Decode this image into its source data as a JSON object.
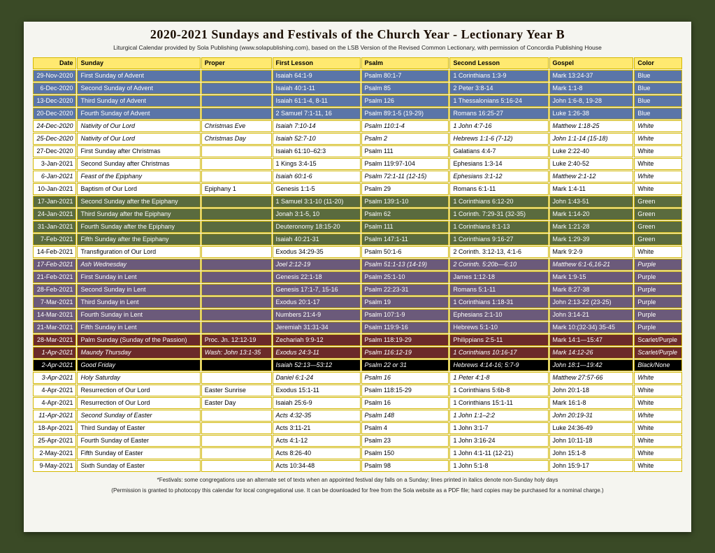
{
  "title": "2020-2021 Sundays and Festivals of the Church Year - Lectionary Year B",
  "subtitle": "Liturgical Calendar provided by Sola Publishing (www.solapublishing.com), based on the LSB Version of the Revised Common Lectionary, with permission of Concordia Publishing House",
  "footnote1": "*Festivals: some congregations use an alternate set of texts when an appointed festival day falls on a Sunday; lines printed in italics denote non-Sunday holy days",
  "footnote2": "(Permission is granted to photocopy this calendar for local congregational use. It can be downloaded for free from the Sola website as a PDF file; hard copies may be purchased for a nominal charge.)",
  "headers": [
    "Date",
    "Sunday",
    "Proper",
    "First Lesson",
    "Psalm",
    "Second Lesson",
    "Gospel",
    "Color"
  ],
  "colorStyles": {
    "Blue": {
      "bg": "#5a75a8",
      "fg": "#ffffff"
    },
    "White": {
      "bg": "#ffffff",
      "fg": "#000000"
    },
    "Green": {
      "bg": "#5a6b3e",
      "fg": "#ffffff"
    },
    "Purple": {
      "bg": "#6b5a7a",
      "fg": "#ffffff"
    },
    "Scarlet/Purple": {
      "bg": "#6b2a2a",
      "fg": "#ffffff"
    },
    "Black/None": {
      "bg": "#000000",
      "fg": "#ffffff"
    }
  },
  "rows": [
    {
      "date": "29-Nov-2020",
      "sunday": "First Sunday of Advent",
      "proper": "",
      "first": "Isaiah 64:1-9",
      "psalm": "Psalm 80:1-7",
      "second": "1 Corinthians 1:3-9",
      "gospel": "Mark 13:24-37",
      "color": "Blue"
    },
    {
      "date": "6-Dec-2020",
      "sunday": "Second Sunday of Advent",
      "proper": "",
      "first": "Isaiah 40:1-11",
      "psalm": "Psalm 85",
      "second": "2  Peter 3:8-14",
      "gospel": "Mark 1:1-8",
      "color": "Blue"
    },
    {
      "date": "13-Dec-2020",
      "sunday": "Third Sunday of Advent",
      "proper": "",
      "first": "Isaiah 61:1-4, 8-11",
      "psalm": "Psalm 126",
      "second": "1 Thessalonians 5:16-24",
      "gospel": "John 1:6-8, 19-28",
      "color": "Blue"
    },
    {
      "date": "20-Dec-2020",
      "sunday": "Fourth Sunday of Advent",
      "proper": "",
      "first": "2 Samuel 7:1-11, 16",
      "psalm": "Psalm 89:1-5 (19-29)",
      "second": "Romans 16:25-27",
      "gospel": "Luke 1:26-38",
      "color": "Blue"
    },
    {
      "date": "24-Dec-2020",
      "sunday": "Nativity of Our Lord",
      "proper": "Christmas Eve",
      "first": "Isaiah 7:10-14",
      "psalm": "Psalm 110:1-4",
      "second": "1 John 4:7-16",
      "gospel": "Matthew 1:18-25",
      "color": "White",
      "italic": true
    },
    {
      "date": "25-Dec-2020",
      "sunday": "Nativity of Our Lord",
      "proper": "Christmas Day",
      "first": "Isaiah 52:7-10",
      "psalm": "Psalm 2",
      "second": "Hebrews 1:1-6 (7-12)",
      "gospel": "John 1:1-14 (15-18)",
      "color": "White",
      "italic": true
    },
    {
      "date": "27-Dec-2020",
      "sunday": "First Sunday after Christmas",
      "proper": "",
      "first": "Isaiah 61:10–62:3",
      "psalm": "Psalm 111",
      "second": "Galatians 4:4-7",
      "gospel": "Luke 2:22-40",
      "color": "White"
    },
    {
      "date": "3-Jan-2021",
      "sunday": "Second Sunday after Christmas",
      "proper": "",
      "first": "1 Kings 3:4-15",
      "psalm": "Psalm 119:97-104",
      "second": "Ephesians 1:3-14",
      "gospel": "Luke 2:40-52",
      "color": "White"
    },
    {
      "date": "6-Jan-2021",
      "sunday": "Feast of the Epiphany",
      "proper": "",
      "first": "Isaiah 60:1-6",
      "psalm": "Psalm 72:1-11 (12-15)",
      "second": "Ephesians 3:1-12",
      "gospel": "Matthew 2:1-12",
      "color": "White",
      "italic": true
    },
    {
      "date": "10-Jan-2021",
      "sunday": "Baptism of Our Lord",
      "proper": "Epiphany 1",
      "first": "Genesis 1:1-5",
      "psalm": "Psalm 29",
      "second": "Romans 6:1-11",
      "gospel": "Mark 1:4-11",
      "color": "White"
    },
    {
      "date": "17-Jan-2021",
      "sunday": "Second Sunday after the Epiphany",
      "proper": "",
      "first": "1 Samuel 3:1-10 (11-20)",
      "psalm": "Psalm 139:1-10",
      "second": "1 Corinthians 6:12-20",
      "gospel": "John 1:43-51",
      "color": "Green"
    },
    {
      "date": "24-Jan-2021",
      "sunday": "Third Sunday after the Epiphany",
      "proper": "",
      "first": "Jonah 3:1-5, 10",
      "psalm": "Psalm 62",
      "second": "1 Corinth. 7:29-31 (32-35)",
      "gospel": "Mark 1:14-20",
      "color": "Green"
    },
    {
      "date": "31-Jan-2021",
      "sunday": "Fourth Sunday after the Epiphany",
      "proper": "",
      "first": "Deuteronomy 18:15-20",
      "psalm": "Psalm 111",
      "second": "1 Corinthians 8:1-13",
      "gospel": "Mark 1:21-28",
      "color": "Green"
    },
    {
      "date": "7-Feb-2021",
      "sunday": "Fifth Sunday after the Epiphany",
      "proper": "",
      "first": "Isaiah 40:21-31",
      "psalm": "Psalm 147:1-11",
      "second": "1 Corinthians 9:16-27",
      "gospel": "Mark 1:29-39",
      "color": "Green"
    },
    {
      "date": "14-Feb-2021",
      "sunday": "Transfiguration of Our Lord",
      "proper": "",
      "first": "Exodus 34:29-35",
      "psalm": "Psalm 50:1-6",
      "second": "2 Corinth. 3:12-13, 4:1-6",
      "gospel": "Mark 9:2-9",
      "color": "White"
    },
    {
      "date": "17-Feb-2021",
      "sunday": "Ash Wednesday",
      "proper": "",
      "first": "Joel 2:12-19",
      "psalm": "Psalm 51:1-13 (14-19)",
      "second": "2 Corinth. 5:20b—6:10",
      "gospel": "Matthew 6:1-6,16-21",
      "color": "Purple",
      "italic": true
    },
    {
      "date": "21-Feb-2021",
      "sunday": "First Sunday in Lent",
      "proper": "",
      "first": "Genesis 22:1-18",
      "psalm": "Psalm 25:1-10",
      "second": "James 1:12-18",
      "gospel": "Mark 1:9-15",
      "color": "Purple"
    },
    {
      "date": "28-Feb-2021",
      "sunday": "Second Sunday in Lent",
      "proper": "",
      "first": "Genesis 17:1-7, 15-16",
      "psalm": "Psalm 22:23-31",
      "second": "Romans 5:1-11",
      "gospel": "Mark 8:27-38",
      "color": "Purple"
    },
    {
      "date": "7-Mar-2021",
      "sunday": "Third Sunday in Lent",
      "proper": "",
      "first": "Exodus 20:1-17",
      "psalm": "Psalm 19",
      "second": "1 Corinthians 1:18-31",
      "gospel": "John 2:13-22 (23-25)",
      "color": "Purple"
    },
    {
      "date": "14-Mar-2021",
      "sunday": "Fourth Sunday in Lent",
      "proper": "",
      "first": "Numbers 21:4-9",
      "psalm": "Psalm 107:1-9",
      "second": "Ephesians 2:1-10",
      "gospel": "John 3:14-21",
      "color": "Purple"
    },
    {
      "date": "21-Mar-2021",
      "sunday": "Fifth Sunday in Lent",
      "proper": "",
      "first": "Jeremiah 31:31-34",
      "psalm": "Psalm 119:9-16",
      "second": "Hebrews 5:1-10",
      "gospel": "Mark 10:(32-34) 35-45",
      "color": "Purple"
    },
    {
      "date": "28-Mar-2021",
      "sunday": "Palm Sunday (Sunday of the Passion)",
      "proper": "Proc. Jn. 12:12-19",
      "first": "Zechariah 9:9-12",
      "psalm": "Psalm 118:19-29",
      "second": "Philippians 2:5-11",
      "gospel": "Mark 14:1—15:47",
      "color": "Scarlet/Purple"
    },
    {
      "date": "1-Apr-2021",
      "sunday": "Maundy Thursday",
      "proper": "Wash: John 13:1-35",
      "first": "Exodus 24:3-11",
      "psalm": "Psalm 116:12-19",
      "second": "1 Corinthians 10:16-17",
      "gospel": "Mark 14:12-26",
      "color": "Scarlet/Purple",
      "italic": true
    },
    {
      "date": "2-Apr-2021",
      "sunday": "Good Friday",
      "proper": "",
      "first": "Isaiah 52:13—53:12",
      "psalm": "Psalm 22 or 31",
      "second": "Hebrews 4:14-16; 5:7-9",
      "gospel": "John 18:1—19:42",
      "color": "Black/None",
      "italic": true
    },
    {
      "date": "3-Apr-2021",
      "sunday": "Holy Saturday",
      "proper": "",
      "first": "Daniel 6:1-24",
      "psalm": "Psalm 16",
      "second": "1 Peter 4:1-8",
      "gospel": "Matthew 27:57-66",
      "color": "White",
      "italic": true
    },
    {
      "date": "4-Apr-2021",
      "sunday": "Resurrection of Our Lord",
      "proper": "Easter Sunrise",
      "first": "Exodus 15:1-11",
      "psalm": "Psalm 118:15-29",
      "second": "1 Corinthians 5:6b-8",
      "gospel": "John 20:1-18",
      "color": "White"
    },
    {
      "date": "4-Apr-2021",
      "sunday": "Resurrection of Our Lord",
      "proper": "Easter Day",
      "first": "Isaiah 25:6-9",
      "psalm": "Psalm 16",
      "second": "1 Corinthians 15:1-11",
      "gospel": "Mark 16:1-8",
      "color": "White"
    },
    {
      "date": "11-Apr-2021",
      "sunday": "Second Sunday of Easter",
      "proper": "",
      "first": "Acts 4:32-35",
      "psalm": "Psalm 148",
      "second": "1 John 1:1–2:2",
      "gospel": "John 20:19-31",
      "color": "White",
      "italic": true
    },
    {
      "date": "18-Apr-2021",
      "sunday": "Third Sunday of Easter",
      "proper": "",
      "first": "Acts 3:11-21",
      "psalm": "Psalm 4",
      "second": "1 John 3:1-7",
      "gospel": "Luke 24:36-49",
      "color": "White"
    },
    {
      "date": "25-Apr-2021",
      "sunday": "Fourth Sunday of Easter",
      "proper": "",
      "first": "Acts 4:1-12",
      "psalm": "Psalm 23",
      "second": "1 John 3:16-24",
      "gospel": "John 10:11-18",
      "color": "White"
    },
    {
      "date": "2-May-2021",
      "sunday": "Fifth Sunday of Easter",
      "proper": "",
      "first": "Acts 8:26-40",
      "psalm": "Psalm 150",
      "second": "1 John 4:1-11 (12-21)",
      "gospel": "John 15:1-8",
      "color": "White"
    },
    {
      "date": "9-May-2021",
      "sunday": "Sixth Sunday of Easter",
      "proper": "",
      "first": "Acts 10:34-48",
      "psalm": "Psalm 98",
      "second": "1 John 5:1-8",
      "gospel": "John 15:9-17",
      "color": "White"
    }
  ]
}
